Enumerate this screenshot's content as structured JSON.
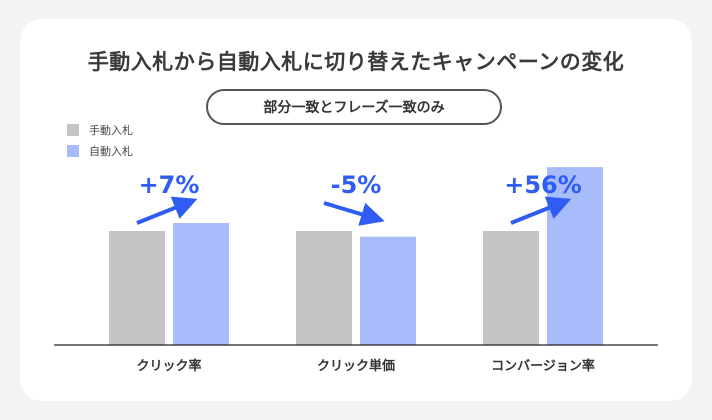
{
  "title": "手動入札から自動入札に切り替えたキャンペーンの変化",
  "subtitle": "部分一致とフレーズ一致のみ",
  "colors": {
    "manual": "#c4c4c4",
    "auto": "#a8bcfb",
    "accent": "#2f5cf2"
  },
  "chart_data": {
    "type": "bar",
    "title": "手動入札から自動入札に切り替えたキャンペーンの変化",
    "subtitle": "部分一致とフレーズ一致のみ",
    "categories": [
      "クリック率",
      "クリック単価",
      "コンバージョン率"
    ],
    "series": [
      {
        "name": "手動入札",
        "values": [
          100,
          100,
          100
        ]
      },
      {
        "name": "自動入札",
        "values": [
          107,
          95,
          156
        ]
      }
    ],
    "annotations": [
      "+7%",
      "-5%",
      "+56%"
    ],
    "ylim": [
      0,
      160
    ],
    "legend": "top-left",
    "grid": false
  }
}
